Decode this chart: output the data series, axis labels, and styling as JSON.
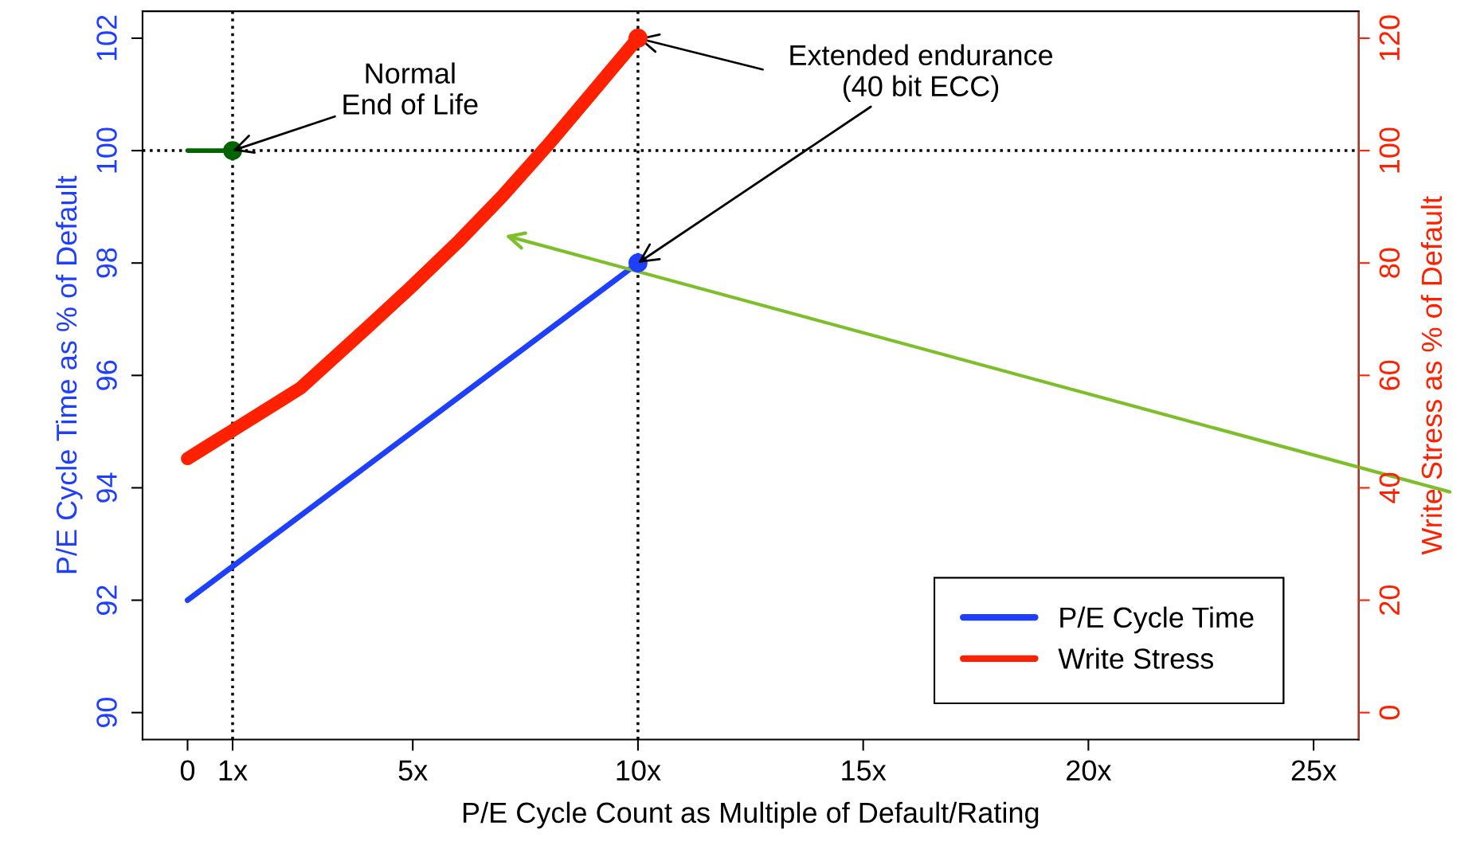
{
  "chart_data": {
    "type": "line",
    "xlabel": "P/E Cycle Count as Multiple of Default/Rating",
    "ylabel": "P/E Cycle Time as % of Default",
    "y2label": "Write Stress as % of Default",
    "xlim": [
      -1,
      26
    ],
    "xticks": [
      0,
      {
        "value": 1,
        "label": "1x"
      },
      {
        "value": 5,
        "label": "5x"
      },
      {
        "value": 10,
        "label": "10x"
      },
      {
        "value": 15,
        "label": "15x"
      },
      {
        "value": 20,
        "label": "20x"
      },
      {
        "value": 25,
        "label": "25x"
      }
    ],
    "ylim": [
      89.52,
      102.48
    ],
    "yticks": [
      90,
      92,
      94,
      96,
      98,
      100,
      102
    ],
    "y2lim": [
      -4.8,
      124.8
    ],
    "y2ticks": [
      0,
      20,
      40,
      60,
      80,
      100,
      120
    ],
    "grid": false,
    "legend": "bottom right",
    "series": [
      {
        "name": "P/E Cycle Time",
        "color": "#1f3fff",
        "x": [
          0,
          10
        ],
        "values": [
          92,
          98
        ]
      },
      {
        "name": "Write Stress",
        "color": "#ff2000",
        "axis": "y2",
        "x": [
          0,
          1,
          2.5,
          4,
          5,
          6,
          7,
          8,
          9,
          10
        ],
        "values": [
          45.2,
          50.2,
          57.7,
          68.6,
          76,
          83.7,
          92,
          101,
          110.5,
          120
        ]
      },
      {
        "color": "#006400",
        "x": [
          0,
          1
        ],
        "values": [
          100,
          100
        ]
      },
      {
        "type": "scatter",
        "color": "#1f3fff",
        "x": [
          10
        ],
        "values": [
          98
        ]
      },
      {
        "type": "scatter",
        "color": "#ff2000",
        "axis": "y2",
        "x": [
          10
        ],
        "values": [
          120
        ]
      },
      {
        "type": "scatter",
        "color": "#006400",
        "x": [
          1
        ],
        "values": [
          100
        ]
      }
    ],
    "ref_lines": [
      {
        "axis": "x",
        "value": 1,
        "line_style": "dotted",
        "color": "#000000"
      },
      {
        "axis": "x",
        "value": 10,
        "line_style": "dotted",
        "color": "#000000"
      },
      {
        "axis": "y",
        "value": 100,
        "line_style": "dotted",
        "color": "#000000"
      }
    ],
    "annotations": [
      {
        "text": "Normal\nEnd of Life",
        "x": 1,
        "y": 100
      },
      {
        "text": "Extended endurance\n(40 bit ECC)",
        "x": 10,
        "y": 98
      }
    ]
  }
}
